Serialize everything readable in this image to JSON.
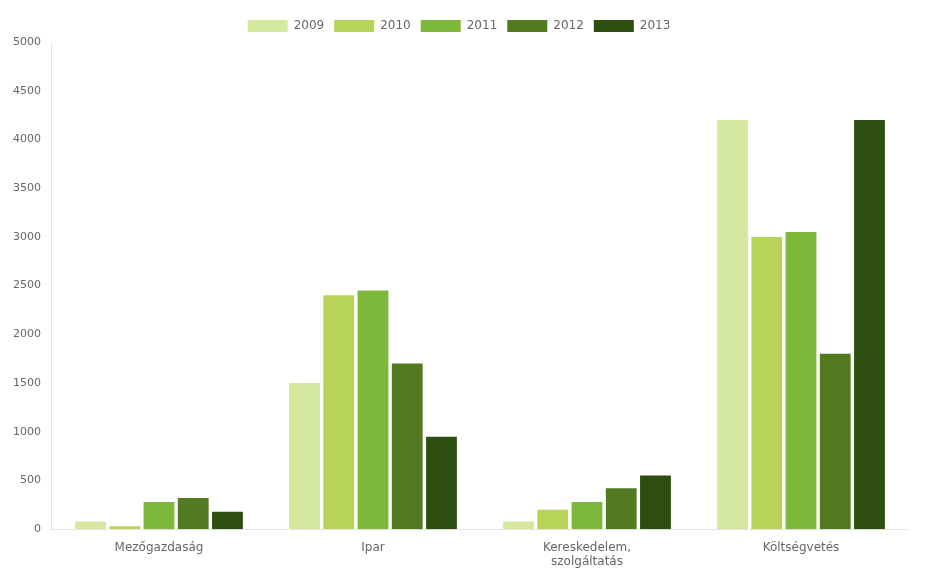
{
  "chart_data": {
    "type": "bar",
    "categories": [
      "Mezőgazdaság",
      "Ipar",
      "Kereskedelem,\nszolgáltatás",
      "Költségvetés"
    ],
    "series": [
      {
        "name": "2009",
        "color": "#d4e8a0",
        "values": [
          80,
          1500,
          80,
          4200
        ]
      },
      {
        "name": "2010",
        "color": "#b8d458",
        "values": [
          30,
          2400,
          200,
          3000
        ]
      },
      {
        "name": "2011",
        "color": "#7db83a",
        "values": [
          280,
          2450,
          280,
          3050
        ]
      },
      {
        "name": "2012",
        "color": "#527a20",
        "values": [
          320,
          1700,
          420,
          1800
        ]
      },
      {
        "name": "2013",
        "color": "#2e4e10",
        "values": [
          180,
          950,
          550,
          4200
        ]
      }
    ],
    "ylim": [
      0,
      5000
    ],
    "yticks": [
      0,
      500,
      1000,
      1500,
      2000,
      2500,
      3000,
      3500,
      4000,
      4500,
      5000
    ],
    "grid": false,
    "legend": "top"
  }
}
